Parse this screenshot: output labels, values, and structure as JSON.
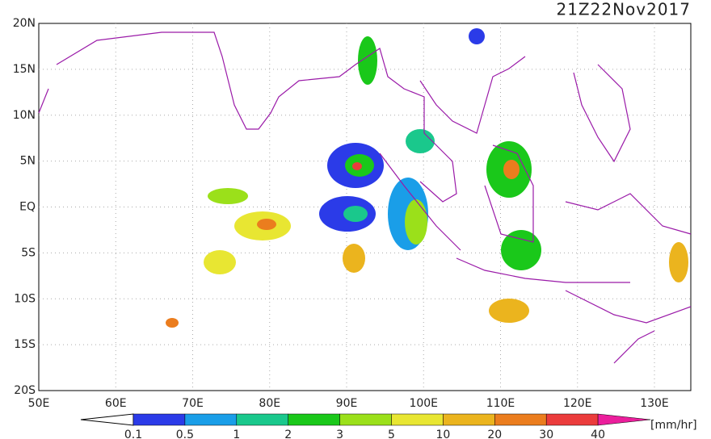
{
  "header": {
    "title": "21Z22Nov2017"
  },
  "axes": {
    "lat_labels": [
      "20N",
      "15N",
      "10N",
      "5N",
      "EQ",
      "5S",
      "10S",
      "15S",
      "20S"
    ],
    "lon_labels": [
      "50E",
      "60E",
      "70E",
      "80E",
      "90E",
      "100E",
      "110E",
      "120E",
      "130E"
    ]
  },
  "colorbar": {
    "labels": [
      "0.1",
      "0.5",
      "1",
      "2",
      "3",
      "5",
      "10",
      "20",
      "30",
      "40"
    ],
    "unit": "[mm/hr]"
  }
}
